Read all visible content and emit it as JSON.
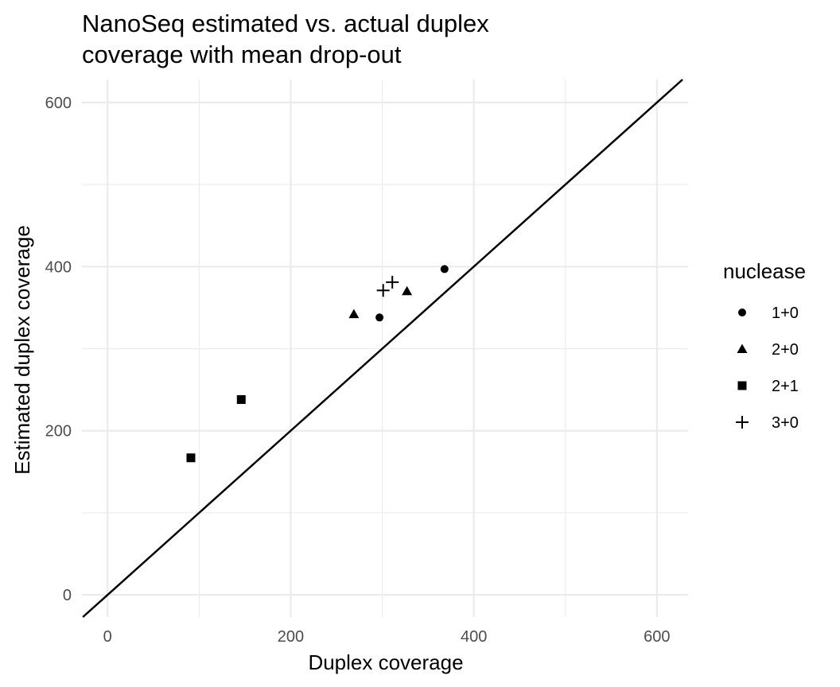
{
  "chart_data": {
    "type": "scatter",
    "title_lines": [
      "NanoSeq estimated vs. actual duplex",
      "coverage with mean drop-out"
    ],
    "xlabel": "Duplex coverage",
    "ylabel": "Estimated duplex coverage",
    "xlim": [
      -28,
      634
    ],
    "ylim": [
      -27,
      628
    ],
    "xticks": [
      0,
      200,
      400,
      600
    ],
    "yticks": [
      0,
      200,
      400,
      600
    ],
    "grid": true,
    "reference_line": {
      "slope": 1,
      "intercept": 0
    },
    "legend": {
      "title": "nuclease",
      "position": "right"
    },
    "series": [
      {
        "name": "1+0",
        "shape": "circle",
        "points": [
          [
            297,
            338
          ],
          [
            368,
            397
          ]
        ]
      },
      {
        "name": "2+0",
        "shape": "triangle",
        "points": [
          [
            269,
            342
          ],
          [
            327,
            370
          ]
        ]
      },
      {
        "name": "2+1",
        "shape": "square",
        "points": [
          [
            91,
            167
          ],
          [
            146,
            238
          ]
        ]
      },
      {
        "name": "3+0",
        "shape": "plus",
        "points": [
          [
            301,
            371
          ],
          [
            311,
            381
          ]
        ]
      }
    ]
  }
}
